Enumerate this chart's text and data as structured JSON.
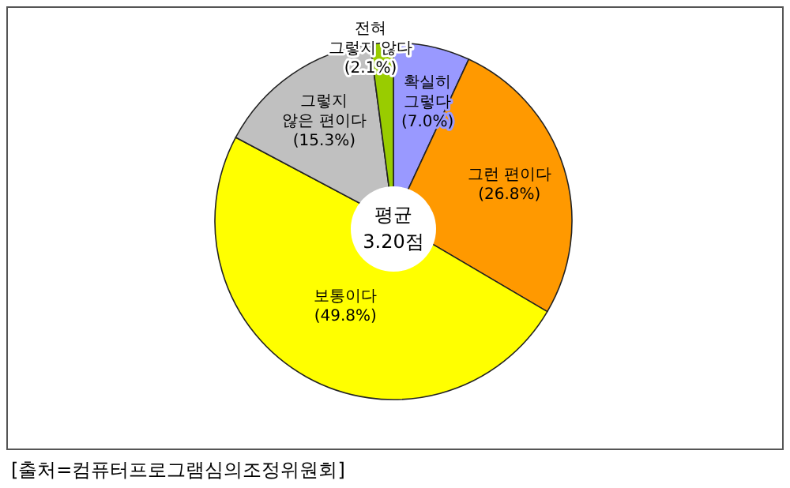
{
  "chart_data": {
    "type": "pie",
    "categories": [
      "확실히\n그렇다",
      "그런 편이다",
      "보통이다",
      "그렇지\n않은 편이다",
      "전혀\n그렇지 않다"
    ],
    "values": [
      7.0,
      26.8,
      49.8,
      15.3,
      2.1
    ],
    "value_labels": [
      "(7.0%)",
      "(26.8%)",
      "(49.8%)",
      "(15.3%)",
      "(2.1%)"
    ],
    "colors": [
      "#9999ff",
      "#ff9900",
      "#ffff00",
      "#c0c0c0",
      "#99cc00"
    ],
    "annotations": [
      "평균\n3.20점",
      "[출처=컴퓨터프로그램심의조정위원회]"
    ]
  }
}
